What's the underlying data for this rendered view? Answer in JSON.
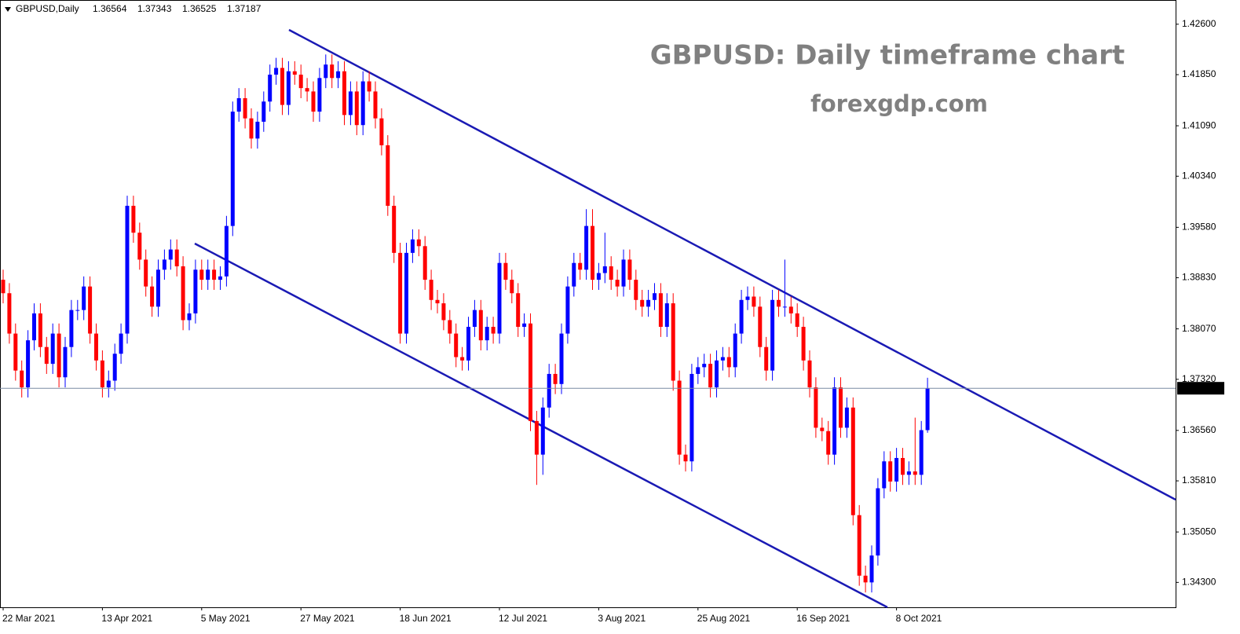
{
  "chart_data": {
    "type": "candlestick",
    "symbol": "GBPUSD,Daily",
    "title": "GBPUSD: Daily timeframe chart",
    "subtitle": "forexgdp.com",
    "up_color": "#0000ff",
    "down_color": "#ff0000",
    "ylim": [
      1.3393,
      1.4296
    ],
    "yticks": [
      {
        "value": 1.426,
        "label": "1.42600"
      },
      {
        "value": 1.4185,
        "label": "1.41850"
      },
      {
        "value": 1.4109,
        "label": "1.41090"
      },
      {
        "value": 1.4034,
        "label": "1.40340"
      },
      {
        "value": 1.3958,
        "label": "1.39580"
      },
      {
        "value": 1.3883,
        "label": "1.38830"
      },
      {
        "value": 1.3807,
        "label": "1.38070"
      },
      {
        "value": 1.3732,
        "label": "1.37320"
      },
      {
        "value": 1.3656,
        "label": "1.36560"
      },
      {
        "value": 1.3581,
        "label": "1.35810"
      },
      {
        "value": 1.3505,
        "label": "1.35050"
      },
      {
        "value": 1.343,
        "label": "1.34300"
      }
    ],
    "categories": [
      "22 Mar 2021",
      null,
      null,
      null,
      null,
      null,
      null,
      null,
      null,
      null,
      null,
      null,
      null,
      null,
      null,
      null,
      "13 Apr 2021",
      null,
      null,
      null,
      null,
      null,
      null,
      null,
      null,
      null,
      null,
      null,
      null,
      null,
      null,
      null,
      "5 May 2021",
      null,
      null,
      null,
      null,
      null,
      null,
      null,
      null,
      null,
      null,
      null,
      null,
      null,
      null,
      null,
      "27 May 2021",
      null,
      null,
      null,
      null,
      null,
      null,
      null,
      null,
      null,
      null,
      null,
      null,
      null,
      null,
      null,
      "18 Jun 2021",
      null,
      null,
      null,
      null,
      null,
      null,
      null,
      null,
      null,
      null,
      null,
      null,
      null,
      null,
      null,
      "12 Jul 2021",
      null,
      null,
      null,
      null,
      null,
      null,
      null,
      null,
      null,
      null,
      null,
      null,
      null,
      null,
      null,
      "3 Aug 2021",
      null,
      null,
      null,
      null,
      null,
      null,
      null,
      null,
      null,
      null,
      null,
      null,
      null,
      null,
      null,
      "25 Aug 2021",
      null,
      null,
      null,
      null,
      null,
      null,
      null,
      null,
      null,
      null,
      null,
      null,
      null,
      null,
      null,
      "16 Sep 2021",
      null,
      null,
      null,
      null,
      null,
      null,
      null,
      null,
      null,
      null,
      null,
      null,
      null,
      null,
      null,
      "8 Oct 2021",
      null,
      null,
      null,
      null,
      null
    ],
    "open": [
      1.388,
      1.386,
      1.38,
      1.3745,
      1.372,
      1.379,
      1.383,
      1.378,
      1.3755,
      1.38,
      1.3735,
      1.378,
      1.3835,
      1.3835,
      1.387,
      1.38,
      1.376,
      1.372,
      1.373,
      1.377,
      1.38,
      1.399,
      1.395,
      1.391,
      1.387,
      1.384,
      1.3895,
      1.391,
      1.3925,
      1.39,
      1.382,
      1.383,
      1.3895,
      1.388,
      1.3895,
      1.388,
      1.3885,
      1.396,
      1.413,
      1.415,
      1.412,
      1.409,
      1.4115,
      1.4145,
      1.4185,
      1.4195,
      1.414,
      1.419,
      1.4185,
      1.4165,
      1.416,
      1.413,
      1.418,
      1.42,
      1.418,
      1.419,
      1.4125,
      1.416,
      1.411,
      1.4175,
      1.416,
      1.412,
      1.408,
      1.399,
      1.392,
      1.38,
      1.392,
      1.394,
      1.393,
      1.388,
      1.385,
      1.3845,
      1.382,
      1.38,
      1.3765,
      1.376,
      1.381,
      1.3835,
      1.379,
      1.381,
      1.38,
      1.3905,
      1.388,
      1.386,
      1.381,
      1.3815,
      1.367,
      1.362,
      1.369,
      1.374,
      1.3725,
      1.38,
      1.387,
      1.3905,
      1.3895,
      1.396,
      1.388,
      1.389,
      1.39,
      1.388,
      1.387,
      1.391,
      1.388,
      1.385,
      1.384,
      1.385,
      1.386,
      1.381,
      1.3845,
      1.373,
      1.362,
      1.361,
      1.374,
      1.375,
      1.3755,
      1.372,
      1.376,
      1.3765,
      1.375,
      1.38,
      1.385,
      1.3855,
      1.384,
      1.378,
      1.3745,
      1.385,
      1.384,
      1.384,
      1.383,
      1.381,
      1.376,
      1.372,
      1.366,
      1.3655,
      1.362,
      1.372,
      1.366,
      1.369,
      1.353,
      1.344,
      1.343,
      1.347,
      1.357,
      1.361,
      1.358,
      1.3615,
      1.359,
      1.3595,
      1.359,
      1.36564
    ],
    "high": [
      1.3895,
      1.3875,
      1.3815,
      1.376,
      1.3805,
      1.3845,
      1.3845,
      1.3795,
      1.3815,
      1.3815,
      1.3795,
      1.385,
      1.385,
      1.3885,
      1.3885,
      1.3815,
      1.3775,
      1.3745,
      1.3785,
      1.3815,
      1.4005,
      1.4005,
      1.3965,
      1.3925,
      1.3885,
      1.391,
      1.3925,
      1.394,
      1.394,
      1.3915,
      1.3845,
      1.391,
      1.391,
      1.391,
      1.391,
      1.39,
      1.3975,
      1.4145,
      1.4165,
      1.4165,
      1.4135,
      1.413,
      1.416,
      1.42,
      1.421,
      1.421,
      1.4205,
      1.4205,
      1.42,
      1.418,
      1.4175,
      1.4195,
      1.4215,
      1.4215,
      1.4205,
      1.4205,
      1.4175,
      1.4175,
      1.419,
      1.419,
      1.4175,
      1.4135,
      1.4095,
      1.4005,
      1.3935,
      1.3935,
      1.3955,
      1.3955,
      1.3945,
      1.3895,
      1.3865,
      1.386,
      1.3835,
      1.3815,
      1.378,
      1.3825,
      1.385,
      1.385,
      1.3825,
      1.3825,
      1.392,
      1.392,
      1.3895,
      1.3875,
      1.383,
      1.383,
      1.3685,
      1.3705,
      1.3755,
      1.3755,
      1.3815,
      1.3885,
      1.392,
      1.392,
      1.3985,
      1.3985,
      1.3905,
      1.395,
      1.3915,
      1.3895,
      1.3925,
      1.3925,
      1.3895,
      1.3865,
      1.3865,
      1.3875,
      1.3875,
      1.386,
      1.386,
      1.3745,
      1.3635,
      1.3755,
      1.3765,
      1.377,
      1.377,
      1.3775,
      1.378,
      1.378,
      1.3815,
      1.3865,
      1.387,
      1.387,
      1.3855,
      1.3795,
      1.3865,
      1.3865,
      1.391,
      1.3855,
      1.3845,
      1.3825,
      1.3775,
      1.3735,
      1.3675,
      1.367,
      1.3735,
      1.3735,
      1.3705,
      1.3705,
      1.3545,
      1.3455,
      1.3485,
      1.3585,
      1.3625,
      1.3625,
      1.363,
      1.363,
      1.361,
      1.3675,
      1.367,
      1.37343
    ],
    "low": [
      1.3845,
      1.3785,
      1.373,
      1.3705,
      1.3705,
      1.3775,
      1.3765,
      1.374,
      1.374,
      1.372,
      1.372,
      1.3765,
      1.382,
      1.382,
      1.3785,
      1.3745,
      1.3705,
      1.3705,
      1.3715,
      1.3755,
      1.3785,
      1.3935,
      1.3895,
      1.3855,
      1.3825,
      1.3825,
      1.388,
      1.3895,
      1.3885,
      1.3805,
      1.3805,
      1.3815,
      1.3865,
      1.3865,
      1.3865,
      1.3865,
      1.387,
      1.3945,
      1.4115,
      1.4105,
      1.4075,
      1.4075,
      1.41,
      1.413,
      1.417,
      1.4125,
      1.4125,
      1.417,
      1.415,
      1.4145,
      1.4115,
      1.4115,
      1.4165,
      1.4165,
      1.4165,
      1.411,
      1.411,
      1.4095,
      1.4095,
      1.4145,
      1.4105,
      1.4065,
      1.3975,
      1.3905,
      1.3785,
      1.3785,
      1.3905,
      1.3915,
      1.3865,
      1.3835,
      1.383,
      1.3805,
      1.3785,
      1.375,
      1.3745,
      1.3745,
      1.3795,
      1.3775,
      1.3775,
      1.3785,
      1.3785,
      1.3865,
      1.3845,
      1.3795,
      1.3795,
      1.3655,
      1.3575,
      1.359,
      1.3675,
      1.371,
      1.371,
      1.3785,
      1.3855,
      1.388,
      1.388,
      1.3865,
      1.3865,
      1.3875,
      1.3865,
      1.3855,
      1.3855,
      1.3865,
      1.3835,
      1.3825,
      1.3825,
      1.3835,
      1.3795,
      1.3795,
      1.3715,
      1.3605,
      1.3595,
      1.3595,
      1.3725,
      1.3735,
      1.3705,
      1.3705,
      1.3745,
      1.3735,
      1.3735,
      1.3785,
      1.3835,
      1.3825,
      1.3765,
      1.373,
      1.373,
      1.3825,
      1.3825,
      1.3815,
      1.3795,
      1.3745,
      1.3705,
      1.3645,
      1.364,
      1.3605,
      1.3605,
      1.3645,
      1.3645,
      1.3515,
      1.3425,
      1.3415,
      1.3415,
      1.3455,
      1.3555,
      1.3565,
      1.3565,
      1.3575,
      1.3575,
      1.3575,
      1.3575,
      1.36525
    ],
    "close": [
      1.386,
      1.38,
      1.3745,
      1.372,
      1.379,
      1.383,
      1.378,
      1.3755,
      1.38,
      1.3735,
      1.378,
      1.3835,
      1.3835,
      1.387,
      1.38,
      1.376,
      1.372,
      1.373,
      1.377,
      1.38,
      1.399,
      1.395,
      1.391,
      1.387,
      1.384,
      1.3895,
      1.391,
      1.3925,
      1.39,
      1.382,
      1.383,
      1.3895,
      1.388,
      1.3895,
      1.388,
      1.3885,
      1.396,
      1.413,
      1.415,
      1.412,
      1.409,
      1.4115,
      1.4145,
      1.4185,
      1.4195,
      1.414,
      1.419,
      1.4185,
      1.4165,
      1.416,
      1.413,
      1.418,
      1.42,
      1.418,
      1.419,
      1.4125,
      1.416,
      1.411,
      1.4175,
      1.416,
      1.412,
      1.408,
      1.399,
      1.392,
      1.38,
      1.392,
      1.394,
      1.393,
      1.388,
      1.385,
      1.3845,
      1.382,
      1.38,
      1.3765,
      1.376,
      1.381,
      1.3835,
      1.379,
      1.381,
      1.38,
      1.3905,
      1.388,
      1.386,
      1.381,
      1.3815,
      1.367,
      1.362,
      1.369,
      1.374,
      1.3725,
      1.38,
      1.387,
      1.3905,
      1.3895,
      1.396,
      1.388,
      1.389,
      1.39,
      1.388,
      1.387,
      1.391,
      1.388,
      1.385,
      1.384,
      1.385,
      1.386,
      1.381,
      1.3845,
      1.373,
      1.362,
      1.361,
      1.374,
      1.375,
      1.3755,
      1.372,
      1.376,
      1.3765,
      1.375,
      1.38,
      1.385,
      1.3855,
      1.384,
      1.378,
      1.3745,
      1.385,
      1.384,
      1.384,
      1.383,
      1.381,
      1.376,
      1.372,
      1.366,
      1.3655,
      1.362,
      1.372,
      1.366,
      1.369,
      1.353,
      1.344,
      1.343,
      1.347,
      1.357,
      1.361,
      1.358,
      1.3615,
      1.359,
      1.3595,
      1.359,
      1.36564,
      1.37187
    ]
  }
}
